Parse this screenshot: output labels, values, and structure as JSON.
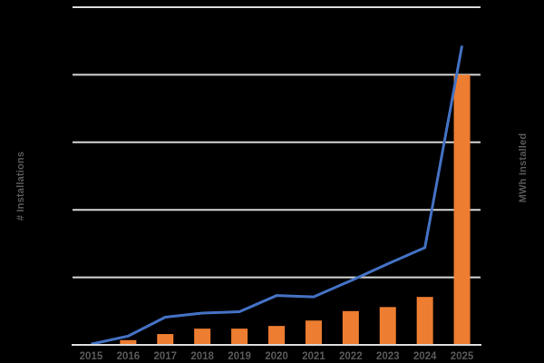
{
  "chart": {
    "title": "",
    "left_axis_title": "# Installations",
    "right_axis_title": "MWh Installed",
    "background_color": "#000000",
    "colors": {
      "line_blue": "#4472C4",
      "bar_orange": "#ED7D31",
      "gridline": "#D9D9D9",
      "axis_line": "#D9D9D9",
      "label_gray": "#595959"
    }
  },
  "chart_data": {
    "type": "combo-bar-line",
    "categories": [
      "2015",
      "2016",
      "2017",
      "2018",
      "2019",
      "2020",
      "2021",
      "2022",
      "2023",
      "2024",
      "2025"
    ],
    "series": [
      {
        "name": "# Installations",
        "type": "line",
        "axis": "left",
        "color": "#4472C4",
        "values": [
          0.01,
          0.13,
          0.41,
          0.47,
          0.49,
          0.73,
          0.71,
          0.95,
          1.2,
          1.44,
          4.43
        ]
      },
      {
        "name": "MWh Installed",
        "type": "bar",
        "axis": "right",
        "color": "#ED7D31",
        "values": [
          0,
          0.07,
          0.16,
          0.24,
          0.24,
          0.28,
          0.36,
          0.5,
          0.56,
          0.71,
          4.0
        ]
      }
    ],
    "title": "",
    "xlabel": "",
    "ylabel_left": "# Installations",
    "ylabel_right": "MWh Installed",
    "y_axis": {
      "min": 0,
      "max": 5,
      "gridline_count": 6,
      "numeric_tick_labels_visible": false,
      "note": "values expressed in gridline units; no numeric tick labels are shown in the chart"
    },
    "grid": true,
    "legend": "none"
  }
}
